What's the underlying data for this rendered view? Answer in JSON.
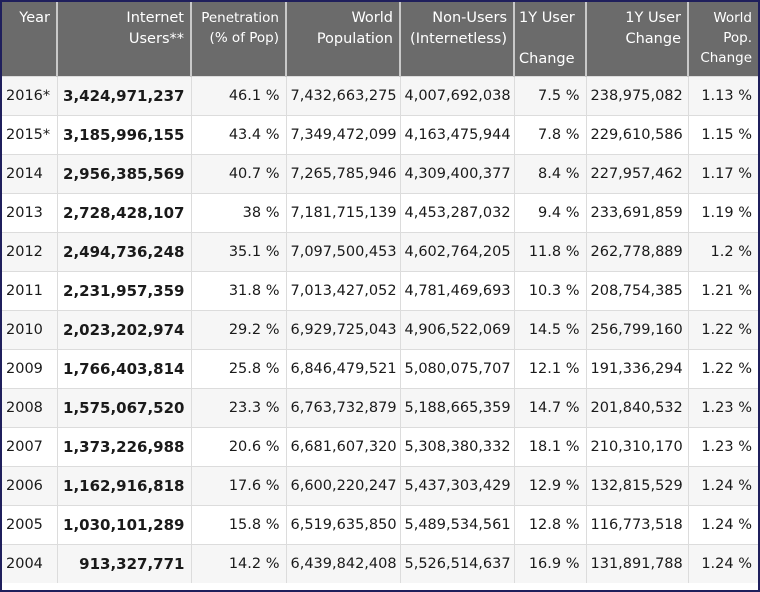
{
  "table": {
    "headers": [
      {
        "line1": "Year",
        "line2": ""
      },
      {
        "line1": "Internet",
        "line2": "Users**"
      },
      {
        "line1": "Penetration",
        "line2": "(% of Pop)"
      },
      {
        "line1": "World",
        "line2": "Population"
      },
      {
        "line1": "Non-Users",
        "line2": "(Internetless)"
      },
      {
        "line1": "1Y User",
        "line2": "",
        "line3": "Change"
      },
      {
        "line1": "1Y User",
        "line2": "Change"
      },
      {
        "line1": "World",
        "line2": "Pop.",
        "line3": "Change"
      }
    ],
    "rows": [
      [
        "2016*",
        "3,424,971,237",
        "46.1 %",
        "7,432,663,275",
        "4,007,692,038",
        "7.5 %",
        "238,975,082",
        "1.13 %"
      ],
      [
        "2015*",
        "3,185,996,155",
        "43.4 %",
        "7,349,472,099",
        "4,163,475,944",
        "7.8 %",
        "229,610,586",
        "1.15 %"
      ],
      [
        "2014",
        "2,956,385,569",
        "40.7 %",
        "7,265,785,946",
        "4,309,400,377",
        "8.4 %",
        "227,957,462",
        "1.17 %"
      ],
      [
        "2013",
        "2,728,428,107",
        "38 %",
        "7,181,715,139",
        "4,453,287,032",
        "9.4 %",
        "233,691,859",
        "1.19 %"
      ],
      [
        "2012",
        "2,494,736,248",
        "35.1 %",
        "7,097,500,453",
        "4,602,764,205",
        "11.8 %",
        "262,778,889",
        "1.2 %"
      ],
      [
        "2011",
        "2,231,957,359",
        "31.8 %",
        "7,013,427,052",
        "4,781,469,693",
        "10.3 %",
        "208,754,385",
        "1.21 %"
      ],
      [
        "2010",
        "2,023,202,974",
        "29.2 %",
        "6,929,725,043",
        "4,906,522,069",
        "14.5 %",
        "256,799,160",
        "1.22 %"
      ],
      [
        "2009",
        "1,766,403,814",
        "25.8 %",
        "6,846,479,521",
        "5,080,075,707",
        "12.1 %",
        "191,336,294",
        "1.22 %"
      ],
      [
        "2008",
        "1,575,067,520",
        "23.3 %",
        "6,763,732,879",
        "5,188,665,359",
        "14.7 %",
        "201,840,532",
        "1.23 %"
      ],
      [
        "2007",
        "1,373,226,988",
        "20.6 %",
        "6,681,607,320",
        "5,308,380,332",
        "18.1 %",
        "210,310,170",
        "1.23 %"
      ],
      [
        "2006",
        "1,162,916,818",
        "17.6 %",
        "6,600,220,247",
        "5,437,303,429",
        "12.9 %",
        "132,815,529",
        "1.24 %"
      ],
      [
        "2005",
        "1,030,101,289",
        "15.8 %",
        "6,519,635,850",
        "5,489,534,561",
        "12.8 %",
        "116,773,518",
        "1.24 %"
      ],
      [
        "2004",
        "913,327,771",
        "14.2 %",
        "6,439,842,408",
        "5,526,514,637",
        "16.9 %",
        "131,891,788",
        "1.24 %"
      ]
    ]
  },
  "colors": {
    "header_bg": "#6b6b6b",
    "header_text": "#ffffff",
    "frame": "#1f1f5c",
    "row_alt": "#f6f6f6",
    "grid": "#dcdcdc"
  }
}
